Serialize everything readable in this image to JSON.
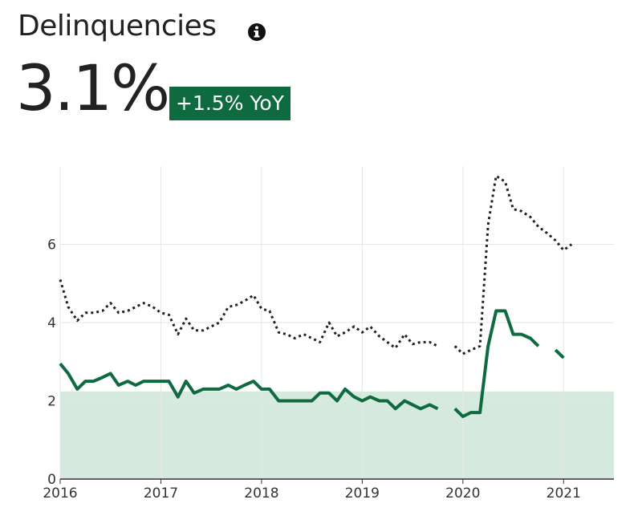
{
  "header": {
    "title": "Delinquencies",
    "value": "3.1%",
    "change": "+1.5% YoY"
  },
  "chart_data": {
    "type": "line",
    "x": [
      2016.0,
      2016.08,
      2016.17,
      2016.25,
      2016.33,
      2016.42,
      2016.5,
      2016.58,
      2016.67,
      2016.75,
      2016.83,
      2016.92,
      2017.0,
      2017.08,
      2017.17,
      2017.25,
      2017.33,
      2017.42,
      2017.5,
      2017.58,
      2017.67,
      2017.75,
      2017.83,
      2017.92,
      2018.0,
      2018.08,
      2018.17,
      2018.25,
      2018.33,
      2018.42,
      2018.5,
      2018.58,
      2018.67,
      2018.75,
      2018.83,
      2018.92,
      2019.0,
      2019.08,
      2019.17,
      2019.25,
      2019.33,
      2019.42,
      2019.5,
      2019.58,
      2019.67,
      2019.75,
      2019.83,
      2019.92,
      2020.0,
      2020.08,
      2020.17,
      2020.25,
      2020.33,
      2020.42,
      2020.5,
      2020.58,
      2020.67,
      2020.75,
      2020.83,
      2020.92,
      2021.0,
      2021.08
    ],
    "series": [
      {
        "color": "#222222",
        "style": "dotted",
        "values": [
          5.1,
          4.4,
          4.05,
          4.25,
          4.25,
          4.3,
          4.5,
          4.25,
          4.3,
          4.4,
          4.5,
          4.4,
          4.25,
          4.2,
          3.7,
          4.1,
          3.8,
          3.8,
          3.9,
          4.0,
          4.4,
          4.45,
          4.55,
          4.7,
          4.35,
          4.3,
          3.75,
          3.7,
          3.6,
          3.7,
          3.6,
          3.5,
          4.0,
          3.65,
          3.75,
          3.9,
          3.75,
          3.9,
          3.65,
          3.5,
          3.35,
          3.7,
          3.45,
          3.5,
          3.5,
          3.4,
          null,
          3.4,
          3.2,
          3.3,
          3.4,
          6.5,
          7.75,
          7.6,
          6.9,
          6.85,
          6.7,
          6.45,
          6.3,
          6.1,
          5.85,
          6.0
        ]
      },
      {
        "color": "#0e6b3f",
        "style": "solid",
        "values": [
          2.95,
          2.7,
          2.3,
          2.5,
          2.5,
          2.6,
          2.7,
          2.4,
          2.5,
          2.4,
          2.5,
          2.5,
          2.5,
          2.5,
          2.1,
          2.5,
          2.2,
          2.3,
          2.3,
          2.3,
          2.4,
          2.3,
          2.4,
          2.5,
          2.3,
          2.3,
          2.0,
          2.0,
          2.0,
          2.0,
          2.0,
          2.2,
          2.2,
          2.0,
          2.3,
          2.1,
          2.0,
          2.1,
          2.0,
          2.0,
          1.8,
          2.0,
          1.9,
          1.8,
          1.9,
          1.8,
          null,
          1.8,
          1.6,
          1.7,
          1.7,
          3.4,
          4.3,
          4.3,
          3.7,
          3.7,
          3.6,
          3.4,
          null,
          3.3,
          3.1,
          null
        ]
      }
    ],
    "shaded_range": [
      0,
      2.24
    ],
    "shade_color": "#d6e9df",
    "xlim": [
      2016,
      2021.5
    ],
    "xticks": [
      2016,
      2017,
      2018,
      2019,
      2020,
      2021
    ],
    "ylim": [
      0,
      8
    ],
    "yticks": [
      0,
      2,
      4,
      6
    ],
    "grid": true
  }
}
